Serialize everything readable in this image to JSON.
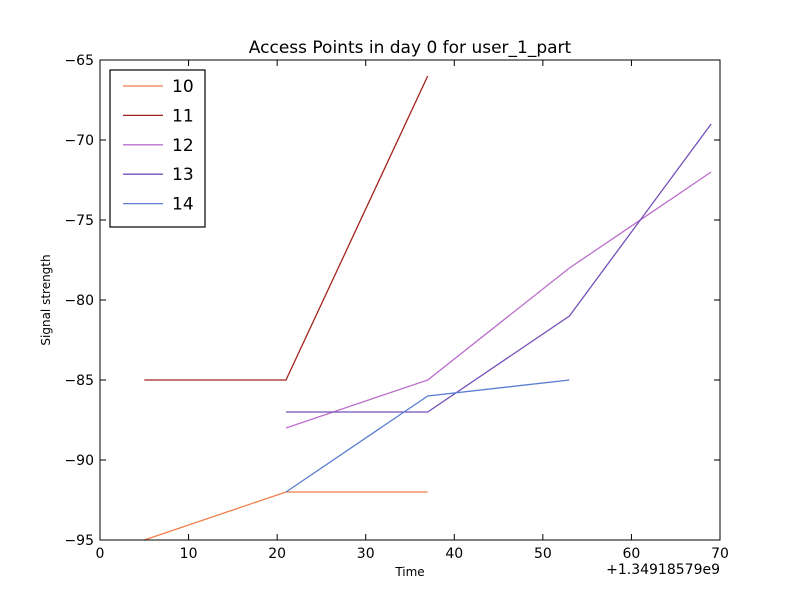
{
  "chart_data": {
    "type": "line",
    "title": "Access Points in day 0 for user_1_part",
    "xlabel": "Time",
    "ylabel": "Signal strength",
    "x_offset_label": "+1.34918579e9",
    "xlim": [
      0,
      70
    ],
    "ylim": [
      -95,
      -65
    ],
    "xticks": [
      0,
      10,
      20,
      30,
      40,
      50,
      60,
      70
    ],
    "yticks": [
      -95,
      -90,
      -85,
      -80,
      -75,
      -70,
      -65
    ],
    "xtick_labels": [
      "0",
      "10",
      "20",
      "30",
      "40",
      "50",
      "60",
      "70"
    ],
    "ytick_labels": [
      "−95",
      "−90",
      "−85",
      "−80",
      "−75",
      "−70",
      "−65"
    ],
    "grid": false,
    "legend_position": "top-left",
    "series": [
      {
        "name": "10",
        "color": "#f07f4a",
        "x": [
          5,
          21,
          37
        ],
        "y": [
          -95,
          -92,
          -92
        ]
      },
      {
        "name": "11",
        "color": "#a3241c",
        "x": [
          5,
          21,
          37
        ],
        "y": [
          -85,
          -85,
          -66
        ]
      },
      {
        "name": "12",
        "color": "#bb6fcc",
        "x": [
          21,
          37,
          53,
          69
        ],
        "y": [
          -88,
          -85,
          -78,
          -72
        ]
      },
      {
        "name": "13",
        "color": "#7350b8",
        "x": [
          21,
          37,
          53,
          69
        ],
        "y": [
          -87,
          -87,
          -81,
          -69
        ]
      },
      {
        "name": "14",
        "color": "#5a7dd0",
        "x": [
          21,
          37,
          53
        ],
        "y": [
          -92,
          -86,
          -85
        ]
      }
    ]
  }
}
